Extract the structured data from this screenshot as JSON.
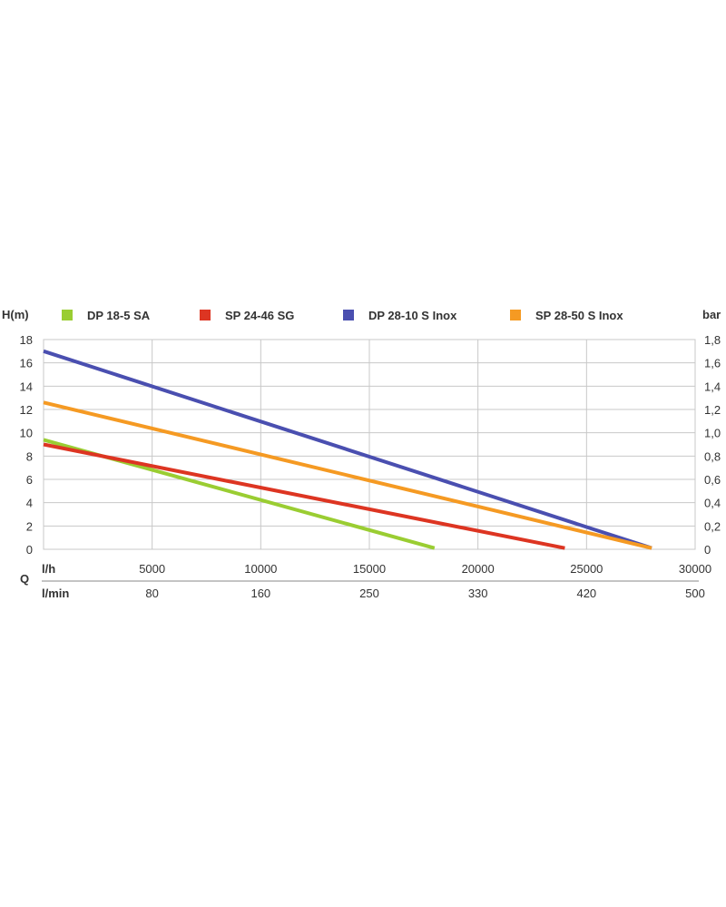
{
  "chart_data": {
    "type": "line",
    "y_left_label": "H(m)",
    "y_right_label": "bar",
    "x_quantity_label": "Q",
    "x_unit_lh": "l/h",
    "x_unit_lmin": "l/min",
    "y_left_ticks": [
      "0",
      "2",
      "4",
      "6",
      "8",
      "10",
      "12",
      "14",
      "16",
      "18"
    ],
    "y_right_ticks": [
      "0",
      "0,2",
      "0,4",
      "0,6",
      "0,8",
      "1,0",
      "1,2",
      "1,4",
      "1,6",
      "1,8"
    ],
    "x_ticks_lh": [
      "5000",
      "10000",
      "15000",
      "20000",
      "25000",
      "30000"
    ],
    "x_ticks_lmin": [
      "80",
      "160",
      "250",
      "330",
      "420",
      "500"
    ],
    "xlim": [
      0,
      30000
    ],
    "ylim": [
      0,
      18
    ],
    "grid": true,
    "legend_position": "top",
    "series": [
      {
        "name": "DP 18-5 SA",
        "color": "#9acd32",
        "points": [
          [
            0,
            9.4
          ],
          [
            18000,
            0.1
          ]
        ]
      },
      {
        "name": "SP 24-46 SG",
        "color": "#dd3522",
        "points": [
          [
            0,
            9.0
          ],
          [
            24000,
            0.1
          ]
        ]
      },
      {
        "name": "DP 28-10 S Inox",
        "color": "#4a4fb0",
        "points": [
          [
            0,
            17.0
          ],
          [
            28000,
            0.1
          ]
        ]
      },
      {
        "name": "SP 28-50 S Inox",
        "color": "#f59a23",
        "points": [
          [
            0,
            12.6
          ],
          [
            28000,
            0.1
          ]
        ]
      }
    ]
  }
}
